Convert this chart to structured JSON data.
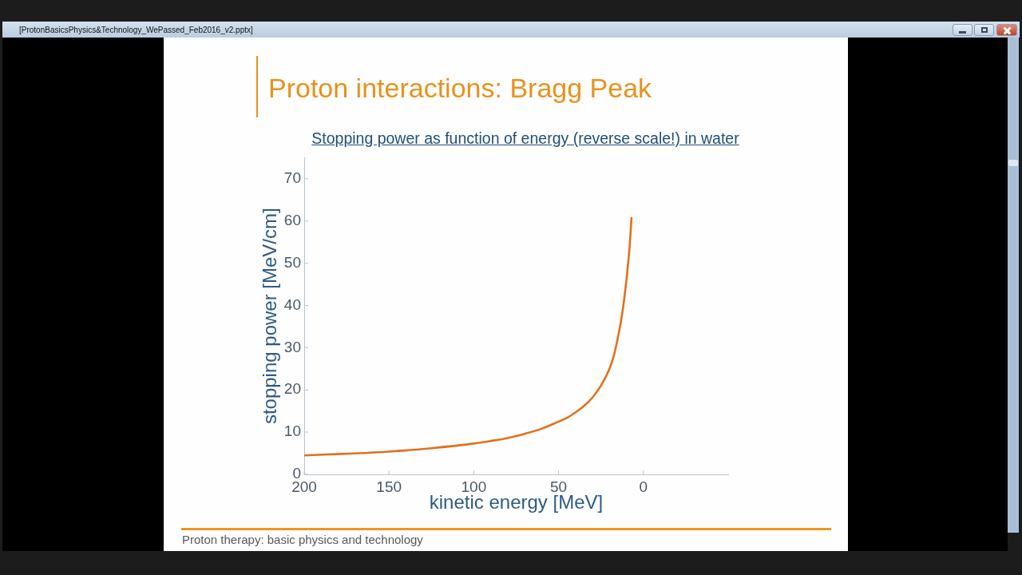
{
  "chart_data": {
    "type": "line",
    "title": "Proton interactions: Bragg Peak",
    "subtitle": "Stopping power as function of energy (reverse scale!) in water",
    "xlabel": "kinetic energy [MeV]",
    "ylabel": "stopping power [MeV/cm]",
    "annotations": [
      "[ProtonBasicsPhysics&Technology_WePassed_Feb2016_v2.pptx]",
      "Proton therapy: basic physics and technology"
    ],
    "x": [
      200,
      175,
      150,
      125,
      100,
      90,
      80,
      70,
      60,
      50,
      45,
      40,
      35,
      30,
      25,
      20,
      17.5,
      15,
      12.5,
      10,
      9,
      8,
      7
    ],
    "series": [
      {
        "color": "#e2701c",
        "values": [
          4.5,
          4.9,
          5.4,
          6.2,
          7.3,
          7.9,
          8.6,
          9.6,
          10.8,
          12.5,
          13.4,
          14.7,
          16.2,
          18.2,
          21,
          25,
          28,
          32.5,
          38,
          46,
          50,
          54.5,
          60.7
        ]
      }
    ],
    "xlim": [
      200,
      -50
    ],
    "xticks": [
      200,
      150,
      100,
      50,
      0
    ],
    "ylim": [
      0,
      75
    ],
    "yticks": [
      0,
      10,
      20,
      30,
      40,
      50,
      60,
      70
    ],
    "marker": "none",
    "line_style": "solid"
  }
}
